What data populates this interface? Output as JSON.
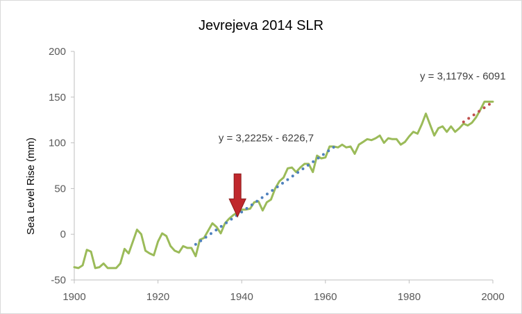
{
  "chart_data": {
    "type": "line",
    "title": "Jevrejeva 2014 SLR",
    "xlabel": "",
    "ylabel": "Sea Level Rise (mm)",
    "xlim": [
      1900,
      2000
    ],
    "ylim": [
      -50,
      200
    ],
    "x_ticks": [
      1900,
      1920,
      1940,
      1960,
      1980,
      2000
    ],
    "y_ticks": [
      -50,
      0,
      50,
      100,
      150,
      200
    ],
    "grid": false,
    "legend": "none",
    "series": [
      {
        "style": "line",
        "color": "#9bbb59",
        "x": [
          1900,
          1901,
          1902,
          1903,
          1904,
          1905,
          1906,
          1907,
          1908,
          1909,
          1910,
          1911,
          1912,
          1913,
          1914,
          1915,
          1916,
          1917,
          1918,
          1919,
          1920,
          1921,
          1922,
          1923,
          1924,
          1925,
          1926,
          1927,
          1928,
          1929,
          1930,
          1931,
          1932,
          1933,
          1934,
          1935,
          1936,
          1937,
          1938,
          1939,
          1940,
          1941,
          1942,
          1943,
          1944,
          1945,
          1946,
          1947,
          1948,
          1949,
          1950,
          1951,
          1952,
          1953,
          1954,
          1955,
          1956,
          1957,
          1958,
          1959,
          1960,
          1961,
          1962,
          1963,
          1964,
          1965,
          1966,
          1967,
          1968,
          1969,
          1970,
          1971,
          1972,
          1973,
          1974,
          1975,
          1976,
          1977,
          1978,
          1979,
          1980,
          1981,
          1982,
          1983,
          1984,
          1985,
          1986,
          1987,
          1988,
          1989,
          1990,
          1991,
          1992,
          1993,
          1994,
          1995,
          1996,
          1997,
          1998,
          1999,
          2000
        ],
        "y": [
          -36,
          -37,
          -34,
          -17,
          -19,
          -37,
          -36,
          -32,
          -37,
          -37,
          -37,
          -32,
          -16,
          -21,
          -8,
          5,
          0,
          -18,
          -21,
          -23,
          -8,
          1,
          -2,
          -13,
          -18,
          -20,
          -13,
          -15,
          -15,
          -24,
          -6,
          -4,
          4,
          12,
          8,
          1,
          12,
          17,
          21,
          24,
          27,
          27,
          28,
          35,
          36,
          26,
          35,
          38,
          50,
          58,
          62,
          72,
          73,
          68,
          73,
          77,
          77,
          68,
          86,
          83,
          84,
          96,
          96,
          95,
          98,
          95,
          96,
          88,
          98,
          101,
          104,
          103,
          105,
          108,
          100,
          105,
          104,
          104,
          98,
          101,
          107,
          112,
          110,
          120,
          132,
          120,
          108,
          116,
          118,
          112,
          118,
          112,
          116,
          121,
          119,
          122,
          128,
          136,
          145,
          145,
          145
        ]
      },
      {
        "style": "dotted",
        "color": "#4f81bd",
        "x": [
          1929,
          1963
        ],
        "y": [
          -11.1,
          98.5
        ],
        "equation": "y = 3,2225x - 6226,7"
      },
      {
        "style": "dotted",
        "color": "#c0504d",
        "x": [
          1993,
          2000
        ],
        "y": [
          122.9,
          144.8
        ],
        "equation": "y = 3,1179x - 6091"
      }
    ],
    "annotations": [
      {
        "type": "arrow",
        "direction": "down",
        "color": "#c0282d",
        "x": 1939,
        "y": 19
      }
    ]
  }
}
